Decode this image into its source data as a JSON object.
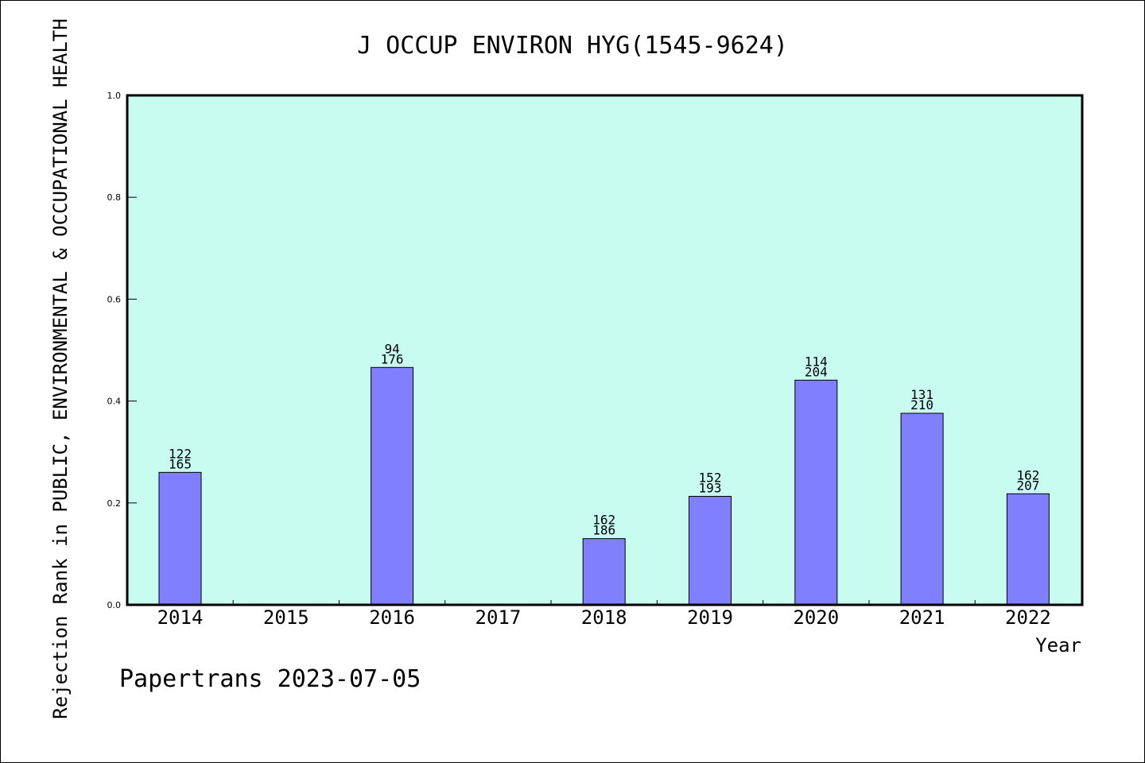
{
  "chart_data": {
    "type": "bar",
    "title": "J OCCUP ENVIRON HYG(1545-9624)",
    "xlabel": "Year",
    "ylabel": "Rejection Rank in PUBLIC, ENVIRONMENTAL & OCCUPATIONAL HEALTH",
    "ylim": [
      0,
      1.0
    ],
    "yticks": [
      "0.0",
      "0.2",
      "0.4",
      "0.6",
      "0.8",
      "1.0"
    ],
    "categories": [
      "2014",
      "2015",
      "2016",
      "2017",
      "2018",
      "2019",
      "2020",
      "2021",
      "2022"
    ],
    "values": [
      0.26,
      null,
      0.466,
      null,
      0.13,
      0.213,
      0.441,
      0.376,
      0.218
    ],
    "bar_labels": [
      {
        "rank": "122",
        "total": "165"
      },
      null,
      {
        "rank": "94",
        "total": "176"
      },
      null,
      {
        "rank": "162",
        "total": "186"
      },
      {
        "rank": "152",
        "total": "193"
      },
      {
        "rank": "114",
        "total": "204"
      },
      {
        "rank": "131",
        "total": "210"
      },
      {
        "rank": "162",
        "total": "207"
      }
    ],
    "grid": false,
    "legend": "none",
    "colors": {
      "plot_background": "#c8fcee",
      "bar_fill": "#8080ff",
      "bar_stroke": "#000000",
      "axis": "#000000"
    }
  },
  "footer": {
    "credit": "Papertrans 2023-07-05"
  }
}
